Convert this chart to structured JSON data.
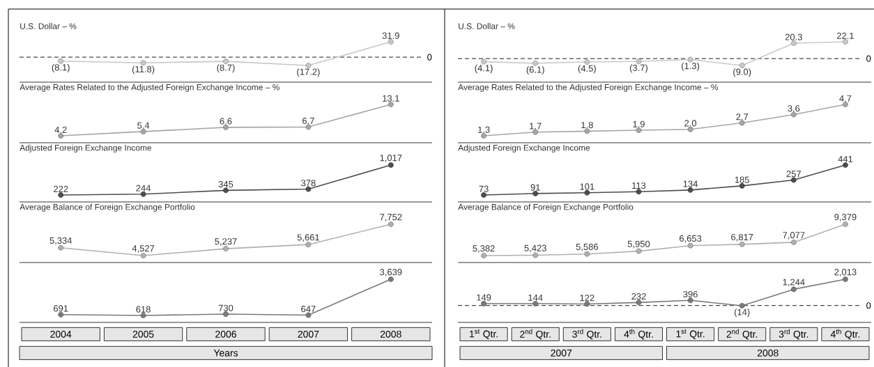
{
  "chart_data": [
    {
      "type": "line",
      "title": "U.S. Dollar – %",
      "categories": [
        null,
        null,
        null,
        null,
        null
      ],
      "values": [
        -8.1,
        -11.8,
        -8.7,
        -17.2,
        31.9
      ],
      "value_labels": [
        "(8.1)",
        "(11.8)",
        "(8.7)",
        "(17.2)",
        "31.9"
      ],
      "color": "#c8c8c8",
      "marker": "circle",
      "tick_labels": false,
      "ref_lines": [
        {
          "axis": "y",
          "value": 0,
          "label": "0",
          "line_style": "dashed"
        }
      ]
    },
    {
      "type": "line",
      "title": "Average Rates Related to the Adjusted Foreign Exchange Income – %",
      "categories": [
        null,
        null,
        null,
        null,
        null
      ],
      "values": [
        4.2,
        5.4,
        6.6,
        6.7,
        13.1
      ],
      "value_labels": [
        "4.2",
        "5.4",
        "6.6",
        "6.7",
        "13.1"
      ],
      "color": "#a6a6a6",
      "marker": "circle",
      "tick_labels": false
    },
    {
      "type": "line",
      "title": "Adjusted Foreign Exchange Income",
      "categories": [
        null,
        null,
        null,
        null,
        null
      ],
      "values": [
        222,
        244,
        345,
        378,
        1017
      ],
      "value_labels": [
        "222",
        "244",
        "345",
        "378",
        "1,017"
      ],
      "color": "#4d4d4d",
      "marker": "circle",
      "tick_labels": false
    },
    {
      "type": "line",
      "title": "Average Balance of Foreign Exchange Portfolio",
      "categories": [
        null,
        null,
        null,
        null,
        null
      ],
      "values": [
        5334,
        4527,
        5237,
        5661,
        7752
      ],
      "value_labels": [
        "5,334",
        "4,527",
        "5,237",
        "5,661",
        "7,752"
      ],
      "color": "#b0b0b0",
      "marker": "circle",
      "tick_labels": false
    },
    {
      "type": "line",
      "xlabel": "Years",
      "categories": [
        "2004",
        "2005",
        "2006",
        "2007",
        "2008"
      ],
      "values": [
        691,
        618,
        730,
        647,
        3639
      ],
      "value_labels": [
        "691",
        "618",
        "730",
        "647",
        "3,639"
      ],
      "color": "#7a7a7a",
      "marker": "circle",
      "tick_labels": "x"
    },
    {
      "type": "line",
      "title": "U.S. Dollar – %",
      "categories": [
        null,
        null,
        null,
        null,
        null,
        null,
        null,
        null
      ],
      "values": [
        -4.1,
        -6.1,
        -4.5,
        -3.7,
        -1.3,
        -9.0,
        20.3,
        22.1
      ],
      "value_labels": [
        "(4.1)",
        "(6.1)",
        "(4.5)",
        "(3.7)",
        "(1.3)",
        "(9.0)",
        "20.3",
        "22.1"
      ],
      "color": "#c8c8c8",
      "marker": "circle",
      "tick_labels": false,
      "ref_lines": [
        {
          "axis": "y",
          "value": 0,
          "label": "0",
          "line_style": "dashed"
        }
      ]
    },
    {
      "type": "line",
      "title": "Average Rates Related to the Adjusted Foreign Exchange Income – %",
      "categories": [
        null,
        null,
        null,
        null,
        null,
        null,
        null,
        null
      ],
      "values": [
        1.3,
        1.7,
        1.8,
        1.9,
        2.0,
        2.7,
        3.6,
        4.7
      ],
      "value_labels": [
        "1.3",
        "1.7",
        "1.8",
        "1.9",
        "2.0",
        "2.7",
        "3.6",
        "4.7"
      ],
      "color": "#a6a6a6",
      "marker": "circle",
      "tick_labels": false
    },
    {
      "type": "line",
      "title": "Adjusted Foreign Exchange Income",
      "categories": [
        null,
        null,
        null,
        null,
        null,
        null,
        null,
        null
      ],
      "values": [
        73,
        91,
        101,
        113,
        134,
        185,
        257,
        441
      ],
      "value_labels": [
        "73",
        "91",
        "101",
        "113",
        "134",
        "185",
        "257",
        "441"
      ],
      "color": "#4d4d4d",
      "marker": "circle",
      "tick_labels": false
    },
    {
      "type": "line",
      "title": "Average Balance of Foreign Exchange Portfolio",
      "categories": [
        null,
        null,
        null,
        null,
        null,
        null,
        null,
        null
      ],
      "values": [
        5382,
        5423,
        5586,
        5950,
        6653,
        6817,
        7077,
        9379
      ],
      "value_labels": [
        "5,382",
        "5,423",
        "5,586",
        "5,950",
        "6,653",
        "6,817",
        "7,077",
        "9,379"
      ],
      "color": "#b0b0b0",
      "marker": "circle",
      "tick_labels": false
    },
    {
      "type": "line",
      "categories": [
        "1$^{st}$ Qtr.",
        "2$^{nd}$ Qtr.",
        "3$^{rd}$ Qtr.",
        "4$^{th}$ Qtr.",
        "1$^{st}$ Qtr.",
        "2$^{nd}$ Qtr.",
        "3$^{rd}$ Qtr.",
        "4$^{th}$ Qtr."
      ],
      "values": [
        149,
        144,
        122,
        232,
        396,
        -14,
        1244,
        2013
      ],
      "value_labels": [
        "149",
        "144",
        "122",
        "232",
        "396",
        "(14)",
        "1,244",
        "2,013"
      ],
      "color": "#7a7a7a",
      "marker": "circle",
      "tick_labels": "x",
      "annotations": [
        "2007",
        "2008"
      ],
      "ref_lines": [
        {
          "axis": "y",
          "value": 0,
          "label": "0",
          "line_style": "dashed"
        }
      ]
    }
  ]
}
